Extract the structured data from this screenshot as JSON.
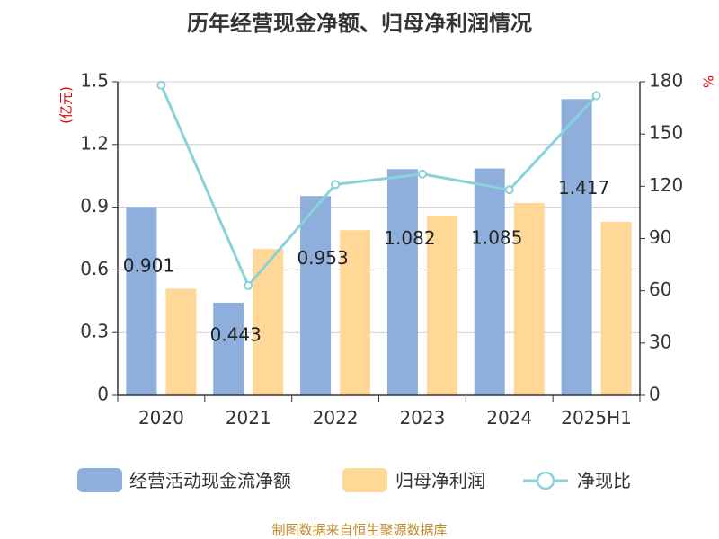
{
  "chart_data": {
    "type": "bar",
    "title": "历年经营现金净额、归母净利润情况",
    "categories": [
      "2020",
      "2021",
      "2022",
      "2023",
      "2024",
      "2025H1"
    ],
    "series": [
      {
        "name": "经营活动现金流净额",
        "type": "bar",
        "axis": "left",
        "color": "#8eaedb",
        "values": [
          0.901,
          0.443,
          0.953,
          1.082,
          1.085,
          1.417
        ]
      },
      {
        "name": "归母净利润",
        "type": "bar",
        "axis": "left",
        "color": "#ffd898",
        "values": [
          0.51,
          0.7,
          0.79,
          0.86,
          0.92,
          0.83
        ]
      },
      {
        "name": "净现比",
        "type": "line",
        "axis": "right",
        "color": "#88d2d8",
        "values": [
          178,
          63,
          121,
          127,
          118,
          172
        ]
      }
    ],
    "data_labels": [
      "0.901",
      "0.443",
      "0.953",
      "1.082",
      "1.085",
      "1.417"
    ],
    "y_left": {
      "label": "(亿元)",
      "min": 0,
      "max": 1.5,
      "ticks": [
        "0",
        "0.3",
        "0.6",
        "0.9",
        "1.2",
        "1.5"
      ]
    },
    "y_right": {
      "label": "%",
      "min": 0,
      "max": 180,
      "ticks": [
        "0",
        "30",
        "60",
        "90",
        "120",
        "150",
        "180"
      ]
    },
    "grid": true,
    "legend_position": "bottom",
    "source": "制图数据来自恒生聚源数据库"
  }
}
